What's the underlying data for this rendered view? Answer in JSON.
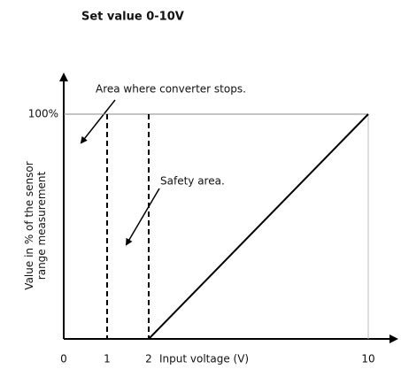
{
  "chart_data": {
    "type": "line",
    "title": "Set value 0-10V",
    "x_label": "Input voltage (V)",
    "y_label": [
      "Value in % of the sensor",
      "range measurement"
    ],
    "xlim": [
      0,
      10
    ],
    "xticks": [
      0,
      1,
      2,
      10
    ],
    "ylim": [
      0,
      100
    ],
    "yticks": [
      {
        "value": 100,
        "label": "100%"
      }
    ],
    "series": [
      {
        "x": [
          2,
          10
        ],
        "values": [
          0,
          100
        ],
        "color": "#000000"
      }
    ],
    "reference_lines": [
      1,
      2
    ],
    "annotations": [
      "Area where converter stops.",
      "Safety area."
    ]
  }
}
